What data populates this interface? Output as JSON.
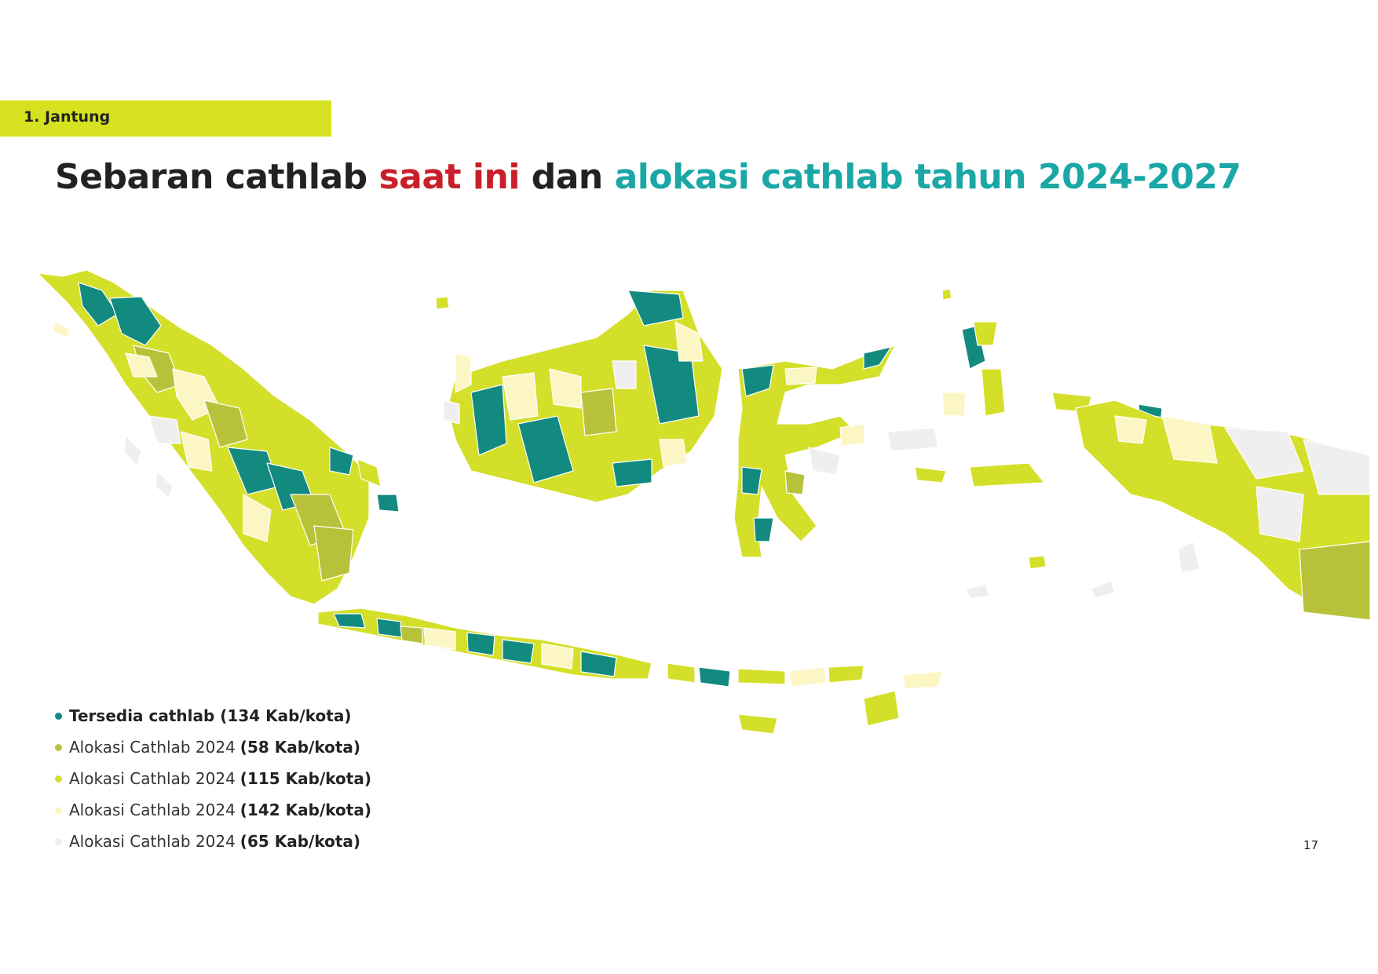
{
  "section_tag": "1. Jantung",
  "title": {
    "part1": "Sebaran cathlab",
    "part2": "saat ini",
    "part3": "dan",
    "part4": "alokasi cathlab tahun 2024-2027"
  },
  "colors": {
    "tag_bg": "#d6e21f",
    "title_red": "#c8202a",
    "title_teal": "#1aa7a6",
    "tersedia": "#138a80",
    "alokasi_a": "#b7c23a",
    "alokasi_b": "#d4df2a",
    "alokasi_c": "#fbf6c4",
    "alokasi_d": "#efefef"
  },
  "legend": [
    {
      "text": "Tersedia cathlab (134 Kab/kota)",
      "count": "",
      "color": "#138a80"
    },
    {
      "text": "Alokasi Cathlab 2024",
      "count": "(58 Kab/kota)",
      "color": "#b7c23a"
    },
    {
      "text": "Alokasi Cathlab 2024",
      "count": "(115 Kab/kota)",
      "color": "#d4df2a"
    },
    {
      "text": "Alokasi Cathlab 2024",
      "count": "(142 Kab/kota)",
      "color": "#fbf6c4"
    },
    {
      "text": "Alokasi Cathlab 2024",
      "count": "(65 Kab/kota)",
      "color": "#efefef"
    }
  ],
  "page_number": "17"
}
